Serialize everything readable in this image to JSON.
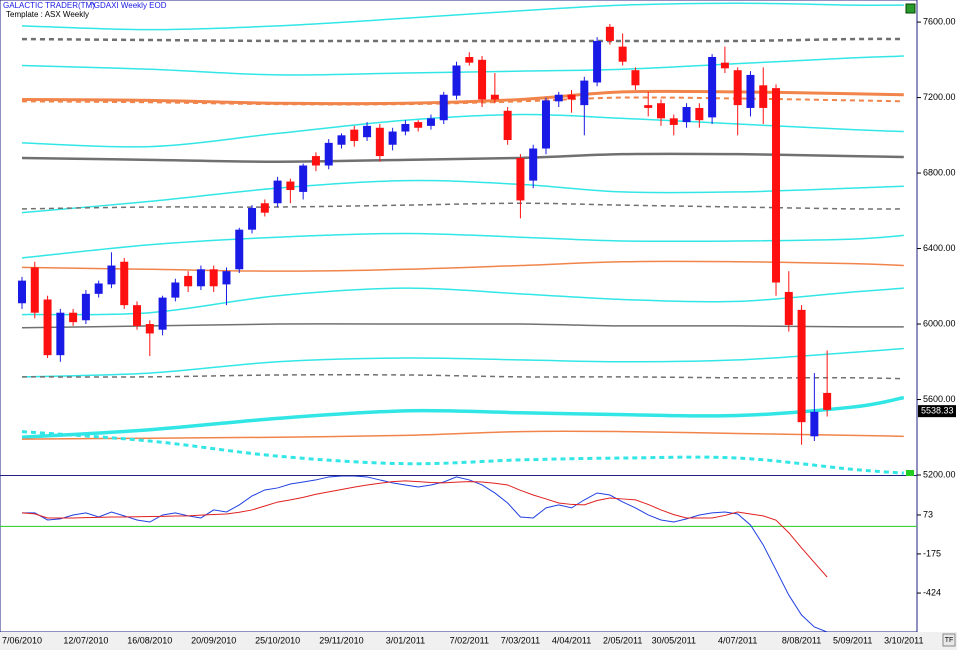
{
  "header": {
    "app": "GALACTIC TRADER(TM)",
    "symbol": "^GDAXI Weekly EOD",
    "template": "Template : ASX Weekly"
  },
  "footer": {
    "corner": "TF"
  },
  "chart_data": [
    {
      "type": "candlestick",
      "categories": [
        "7/06/2010",
        null,
        null,
        null,
        null,
        "12/07/2010",
        null,
        null,
        null,
        null,
        "16/08/2010",
        null,
        null,
        null,
        null,
        "20/09/2010",
        null,
        null,
        null,
        null,
        "25/10/2010",
        null,
        null,
        null,
        null,
        "29/11/2010",
        null,
        null,
        null,
        null,
        "3/01/2011",
        null,
        null,
        null,
        null,
        "7/02/2011",
        null,
        null,
        null,
        "7/03/2011",
        null,
        null,
        null,
        "4/04/2011",
        null,
        null,
        null,
        "2/05/2011",
        null,
        null,
        null,
        "30/05/2011",
        null,
        null,
        null,
        null,
        "4/07/2011",
        null,
        null,
        null,
        null,
        "8/08/2011",
        null,
        null,
        null,
        "5/09/2011",
        null,
        null,
        null,
        "3/10/2011"
      ],
      "open": [
        6110,
        6300,
        6130,
        5835,
        6060,
        6020,
        6160,
        6210,
        6330,
        6100,
        6000,
        5970,
        6140,
        6255,
        6200,
        6290,
        6210,
        6290,
        6500,
        6640,
        6640,
        6755,
        6700,
        6890,
        6840,
        6950,
        7030,
        6990,
        7040,
        6950,
        7020,
        7070,
        7050,
        7080,
        7210,
        7415,
        7400,
        7215,
        7130,
        6880,
        6760,
        6930,
        7180,
        7215,
        7160,
        7280,
        7575,
        7470,
        7345,
        7160,
        7170,
        7090,
        7070,
        7145,
        7095,
        7385,
        7345,
        7145,
        7265,
        7250,
        6170,
        6075,
        5405,
        5635,
        null,
        null,
        null,
        null,
        null,
        null
      ],
      "high": [
        6250,
        6330,
        6150,
        6080,
        6080,
        6180,
        6230,
        6380,
        6350,
        6120,
        6020,
        6150,
        6240,
        6280,
        6310,
        6310,
        6300,
        6510,
        6630,
        6660,
        6780,
        6770,
        6850,
        6910,
        6980,
        7010,
        7050,
        7070,
        7060,
        7040,
        7080,
        7080,
        7110,
        7230,
        7390,
        7440,
        7420,
        7330,
        7150,
        6900,
        6950,
        7200,
        7230,
        7240,
        7310,
        7520,
        7590,
        7540,
        7360,
        7230,
        7190,
        7110,
        7170,
        7170,
        7430,
        7470,
        7360,
        7340,
        7360,
        7270,
        6280,
        6100,
        5740,
        5860,
        null,
        null,
        null,
        null,
        null,
        null
      ],
      "low": [
        6080,
        6030,
        5820,
        5800,
        5990,
        6000,
        6140,
        6190,
        6080,
        5970,
        5830,
        5940,
        6120,
        6170,
        6180,
        6170,
        6100,
        6270,
        6480,
        6570,
        6620,
        6640,
        6660,
        6810,
        6820,
        6930,
        6940,
        6970,
        6860,
        6920,
        7000,
        7020,
        7030,
        7060,
        7190,
        7370,
        7150,
        7170,
        6950,
        6560,
        6720,
        6900,
        7150,
        7120,
        7000,
        7260,
        7480,
        7370,
        7240,
        7100,
        7050,
        7000,
        7040,
        7040,
        7060,
        7330,
        7000,
        7100,
        7060,
        6150,
        5960,
        5360,
        5380,
        5510,
        null,
        null,
        null,
        null,
        null,
        null
      ],
      "close": [
        6230,
        6060,
        5835,
        6060,
        6010,
        6160,
        6215,
        6310,
        6100,
        5990,
        5950,
        6140,
        6220,
        6200,
        6290,
        6200,
        6280,
        6500,
        6615,
        6590,
        6760,
        6710,
        6840,
        6840,
        6960,
        7000,
        6970,
        7050,
        6890,
        7020,
        7060,
        7040,
        7090,
        7215,
        7370,
        7385,
        7190,
        7190,
        6975,
        6655,
        6930,
        7185,
        7215,
        7190,
        7290,
        7500,
        7500,
        7390,
        7265,
        7145,
        7090,
        7055,
        7150,
        7080,
        7415,
        7355,
        7160,
        7320,
        7145,
        6220,
        5995,
        5480,
        5535,
        5545,
        null,
        null,
        null,
        null,
        null,
        null
      ],
      "up_color": "#1a1ae6",
      "down_color": "#ff1010",
      "last_price": 5538.33,
      "overlay_x": [
        "7/06/2010",
        "16/08/2010",
        "25/10/2010",
        "3/01/2011",
        "7/03/2011",
        "2/05/2011",
        "4/07/2011",
        "5/09/2011",
        "3/10/2011"
      ],
      "overlays": [
        {
          "color": "#33e6e6",
          "style": "solid",
          "width": 1.5,
          "values": [
            7580,
            7560,
            7580,
            7620,
            7660,
            7690,
            7700,
            7690,
            7690
          ]
        },
        {
          "color": "#707070",
          "style": "dashed",
          "width": 2.5,
          "values": [
            7510,
            7505,
            7500,
            7500,
            7500,
            7500,
            7500,
            7510,
            7510
          ]
        },
        {
          "color": "#33e6e6",
          "style": "solid",
          "width": 1.5,
          "values": [
            7370,
            7350,
            7320,
            7330,
            7340,
            7350,
            7380,
            7410,
            7420
          ]
        },
        {
          "color": "#f0844a",
          "style": "solid",
          "width": 3,
          "values": [
            7190,
            7185,
            7170,
            7170,
            7190,
            7230,
            7230,
            7220,
            7215
          ]
        },
        {
          "color": "#f0844a",
          "style": "dashed",
          "width": 2,
          "values": [
            7180,
            7175,
            7165,
            7165,
            7180,
            7200,
            7195,
            7185,
            7180
          ]
        },
        {
          "color": "#33e6e6",
          "style": "solid",
          "width": 1.5,
          "values": [
            6960,
            6940,
            7010,
            7080,
            7110,
            7090,
            7060,
            7030,
            7020
          ]
        },
        {
          "color": "#707070",
          "style": "solid",
          "width": 2.5,
          "values": [
            6880,
            6870,
            6860,
            6870,
            6880,
            6900,
            6900,
            6890,
            6885
          ]
        },
        {
          "color": "#33e6e6",
          "style": "solid",
          "width": 1.5,
          "values": [
            6590,
            6650,
            6720,
            6760,
            6740,
            6700,
            6700,
            6720,
            6730
          ]
        },
        {
          "color": "#707070",
          "style": "dashed",
          "width": 1.5,
          "values": [
            6610,
            6620,
            6620,
            6630,
            6640,
            6630,
            6620,
            6610,
            6610
          ]
        },
        {
          "color": "#33e6e6",
          "style": "solid",
          "width": 1.5,
          "values": [
            6350,
            6420,
            6460,
            6480,
            6460,
            6440,
            6440,
            6450,
            6470
          ]
        },
        {
          "color": "#f0844a",
          "style": "solid",
          "width": 1.5,
          "values": [
            6300,
            6290,
            6280,
            6290,
            6310,
            6330,
            6330,
            6320,
            6310
          ]
        },
        {
          "color": "#33e6e6",
          "style": "solid",
          "width": 1.5,
          "values": [
            6050,
            6060,
            6150,
            6190,
            6160,
            6130,
            6120,
            6170,
            6190
          ]
        },
        {
          "color": "#707070",
          "style": "solid",
          "width": 1.5,
          "values": [
            5980,
            5990,
            6000,
            6000,
            6000,
            5990,
            5990,
            5985,
            5985
          ]
        },
        {
          "color": "#33e6e6",
          "style": "solid",
          "width": 1.5,
          "values": [
            5720,
            5740,
            5800,
            5820,
            5810,
            5800,
            5810,
            5850,
            5870
          ]
        },
        {
          "color": "#707070",
          "style": "dashed",
          "width": 1.5,
          "values": [
            5720,
            5720,
            5730,
            5730,
            5720,
            5720,
            5715,
            5715,
            5710
          ]
        },
        {
          "color": "#33e6e6",
          "style": "solid",
          "width": 3.5,
          "values": [
            5400,
            5440,
            5500,
            5540,
            5530,
            5520,
            5515,
            5560,
            5610
          ]
        },
        {
          "color": "#f0844a",
          "style": "solid",
          "width": 1.5,
          "values": [
            5390,
            5395,
            5400,
            5410,
            5430,
            5430,
            5420,
            5410,
            5405
          ]
        },
        {
          "color": "#33e6e6",
          "style": "dashed",
          "width": 3,
          "values": [
            5430,
            5380,
            5300,
            5260,
            5280,
            5290,
            5290,
            5230,
            5210
          ]
        }
      ],
      "ylim": [
        5200,
        7717
      ],
      "yticks": [
        {
          "value": 5200,
          "label": "5200.00"
        },
        {
          "value": 5600,
          "label": "5600.00"
        },
        {
          "value": 6000,
          "label": "6000.00"
        },
        {
          "value": 6400,
          "label": "6400.00"
        },
        {
          "value": 6800,
          "label": "6800.00"
        },
        {
          "value": 7200,
          "label": "7200.00"
        },
        {
          "value": 7600,
          "label": "7600.00"
        }
      ]
    },
    {
      "type": "line",
      "zero_line": true,
      "series": [
        {
          "color": "#2040e0",
          "values": [
            86,
            86,
            41,
            48,
            73,
            86,
            60,
            92,
            67,
            41,
            28,
            73,
            86,
            67,
            54,
            105,
            92,
            137,
            194,
            232,
            245,
            270,
            283,
            296,
            315,
            321,
            321,
            315,
            296,
            277,
            264,
            251,
            264,
            283,
            315,
            296,
            264,
            213,
            149,
            60,
            54,
            118,
            137,
            118,
            169,
            213,
            200,
            156,
            118,
            73,
            41,
            28,
            48,
            73,
            86,
            92,
            79,
            9,
            -118,
            -277,
            -437,
            -564,
            -640,
            -672,
            null,
            null,
            null,
            null,
            null,
            null
          ]
        },
        {
          "color": "#e02020",
          "values": [
            86,
            80,
            54,
            54,
            54,
            56,
            58,
            60,
            60,
            62,
            63,
            64,
            66,
            67,
            72,
            76,
            79,
            90,
            105,
            130,
            155,
            169,
            185,
            205,
            220,
            235,
            250,
            264,
            275,
            285,
            290,
            285,
            280,
            277,
            282,
            285,
            283,
            275,
            264,
            230,
            200,
            175,
            149,
            140,
            137,
            165,
            181,
            175,
            169,
            140,
            105,
            75,
            54,
            54,
            54,
            70,
            92,
            79,
            67,
            40,
            -40,
            -137,
            -230,
            -322,
            null,
            null,
            null,
            null,
            null,
            null
          ]
        }
      ],
      "ylim": [
        -672,
        321
      ],
      "yticks": [
        -424,
        -175,
        73
      ]
    }
  ]
}
